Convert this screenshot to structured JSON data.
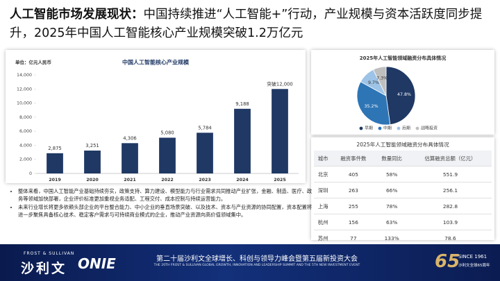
{
  "header": {
    "title_bold": "人工智能市场发展现状：",
    "title_rest": "中国持续推进“人工智能+”行动，产业规模与资本活跃度同步提升，2025年中国人工智能核心产业规模突破1.2万亿元"
  },
  "chart_data": [
    {
      "type": "bar",
      "title": "中国人工智能核心产业规模",
      "unit": "单位：亿元人民币",
      "categories": [
        "2019",
        "2020",
        "2021",
        "2022",
        "2023",
        "2024",
        "2025"
      ],
      "values": [
        2875,
        3251,
        4306,
        5080,
        5784,
        9188,
        12000
      ],
      "value_labels": [
        "2,875",
        "3,251",
        "4,306",
        "5,080",
        "5,784",
        "9,188",
        "突破12,000"
      ],
      "color": "#1f3864",
      "ylim": [
        0,
        14000
      ],
      "yticks": [
        0,
        {
          "value": 2000,
          "label": "2,000"
        },
        {
          "value": 4000,
          "label": "4,000"
        },
        {
          "value": 6000,
          "label": "6,000"
        },
        {
          "value": 8000,
          "label": "8,000"
        },
        {
          "value": 10000,
          "label": "10,000"
        },
        {
          "value": 12000,
          "label": "12,000"
        },
        {
          "value": 14000,
          "label": "14,000"
        }
      ],
      "grid": false
    },
    {
      "type": "pie",
      "title": "2025年人工智能领域融资分布具体情况",
      "categories": [
        "早期",
        "中期",
        "后期",
        "战略投资"
      ],
      "values": [
        47.8,
        35.2,
        9.7,
        7.3
      ],
      "value_labels": [
        "47.8%",
        "35.2%",
        "9.7%",
        "7.3%"
      ],
      "colors": [
        "#1f3864",
        "#2e75b6",
        "#9dc3e6",
        "#bfbfbf"
      ]
    }
  ],
  "table": {
    "title": "2025年人工智能领域融资分布具体情况",
    "header": [
      "城市",
      "融资事件数",
      "数量同比",
      "估算融资总额（亿元）"
    ],
    "rows": [
      [
        "北京",
        "405",
        "58%",
        "551.9"
      ],
      [
        "深圳",
        "263",
        "66%",
        "256.1"
      ],
      [
        "上海",
        "255",
        "78%",
        "282.8"
      ],
      [
        "杭州",
        "156",
        "63%",
        "103.9"
      ],
      [
        "苏州",
        "77",
        "133%",
        "78.6"
      ]
    ]
  },
  "bullets": [
    "整体来看，中国人工智能产业基础持续夯实，政策支持、算力建设、模型能力与行业需求共同推动产业扩张，金融、制造、医疗、政务等领域加快部署，企业评价标准更加重视业务适配、工程交付、成本控制与持续运营能力。",
    "未来行业增长将更多依赖头部企业的平台整合能力、中小企业的垂直场景突破、以及技术、资本与产业资源的协同配置，资本配置将进一步聚焦具备核心技术、稳定客户需求与可持续商业模式的企业，推动产业资源向高价值领域集中。"
  ],
  "footer": {
    "brand_en": "FROST & SULLIVAN",
    "brand_cn": "沙利文",
    "event_logo": "ONIE",
    "event_cn": "第二十届沙利文全球增长、科创与领导力峰会暨第五届新投资大会",
    "event_en": "THE 20TH FROST & SULLIVAN GLOBAL GROWTH, INNOVATION AND LEADERSHIP SUMMIT AND THE 5TH NEW INVESTMENT EVENT",
    "anniv_number": "65",
    "anniv_since": "SINCE 1961",
    "anniv_cn": "沙利文全球65周年"
  }
}
